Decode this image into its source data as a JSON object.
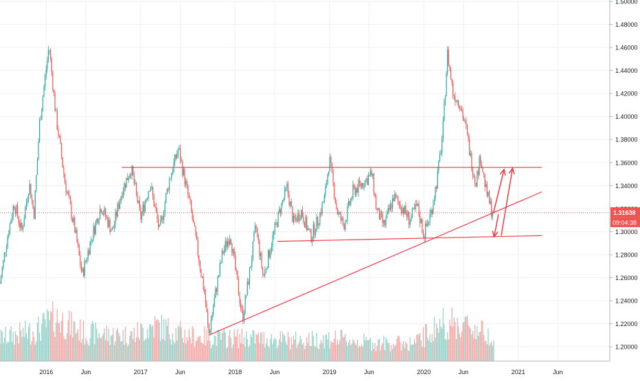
{
  "chart_data": {
    "type": "candlestick",
    "x_tick_labels": [
      "2016",
      "Jun",
      "2017",
      "Jun",
      "2018",
      "Jun",
      "2019",
      "Jun",
      "2020",
      "Jun",
      "2021",
      "Jun"
    ],
    "x_ticks": [
      {
        "label": "2016",
        "date": 2016.0
      },
      {
        "label": "Jun",
        "date": 2016.42
      },
      {
        "label": "2017",
        "date": 2017.0
      },
      {
        "label": "Jun",
        "date": 2017.42
      },
      {
        "label": "2018",
        "date": 2018.0
      },
      {
        "label": "Jun",
        "date": 2018.42
      },
      {
        "label": "2019",
        "date": 2019.0
      },
      {
        "label": "Jun",
        "date": 2019.42
      },
      {
        "label": "2020",
        "date": 2020.0
      },
      {
        "label": "Jun",
        "date": 2020.42
      },
      {
        "label": "2021",
        "date": 2021.0
      },
      {
        "label": "Jun",
        "date": 2021.42
      }
    ],
    "y_tick_labels": [
      "1.50000",
      "1.48000",
      "1.46000",
      "1.44000",
      "1.42000",
      "1.40000",
      "1.38000",
      "1.36000",
      "1.34000",
      "1.32000",
      "1.30000",
      "1.28000",
      "1.26000",
      "1.24000",
      "1.22000",
      "1.20000"
    ],
    "ylim": [
      1.1875,
      1.5
    ],
    "xlim": [
      2015.51,
      2021.97
    ],
    "current_price": {
      "label": "1.31638",
      "value": 1.31638,
      "color": "#ef5350"
    },
    "countdown": {
      "label": "09:04:38"
    },
    "colors": {
      "up": "#26a69a",
      "down": "#ef5350",
      "drawing": "#f23645",
      "volume_up": "#8fcfc5",
      "volume_down": "#f5a3a1"
    },
    "price_path": [
      [
        2015.51,
        1.255
      ],
      [
        2015.58,
        1.292
      ],
      [
        2015.66,
        1.325
      ],
      [
        2015.74,
        1.3
      ],
      [
        2015.82,
        1.342
      ],
      [
        2015.87,
        1.315
      ],
      [
        2015.93,
        1.395
      ],
      [
        2016.03,
        1.462
      ],
      [
        2016.1,
        1.402
      ],
      [
        2016.2,
        1.342
      ],
      [
        2016.3,
        1.303
      ],
      [
        2016.38,
        1.262
      ],
      [
        2016.48,
        1.295
      ],
      [
        2016.58,
        1.322
      ],
      [
        2016.7,
        1.3
      ],
      [
        2016.8,
        1.335
      ],
      [
        2016.9,
        1.355
      ],
      [
        2017.0,
        1.312
      ],
      [
        2017.1,
        1.342
      ],
      [
        2017.2,
        1.3
      ],
      [
        2017.3,
        1.344
      ],
      [
        2017.4,
        1.372
      ],
      [
        2017.48,
        1.34
      ],
      [
        2017.53,
        1.32
      ],
      [
        2017.6,
        1.285
      ],
      [
        2017.68,
        1.245
      ],
      [
        2017.72,
        1.21
      ],
      [
        2017.8,
        1.25
      ],
      [
        2017.87,
        1.282
      ],
      [
        2017.95,
        1.298
      ],
      [
        2018.0,
        1.268
      ],
      [
        2018.08,
        1.225
      ],
      [
        2018.15,
        1.262
      ],
      [
        2018.22,
        1.305
      ],
      [
        2018.3,
        1.26
      ],
      [
        2018.4,
        1.295
      ],
      [
        2018.48,
        1.32
      ],
      [
        2018.55,
        1.338
      ],
      [
        2018.62,
        1.308
      ],
      [
        2018.7,
        1.318
      ],
      [
        2018.8,
        1.295
      ],
      [
        2018.88,
        1.31
      ],
      [
        2018.95,
        1.33
      ],
      [
        2019.0,
        1.363
      ],
      [
        2019.08,
        1.318
      ],
      [
        2019.15,
        1.305
      ],
      [
        2019.25,
        1.335
      ],
      [
        2019.35,
        1.342
      ],
      [
        2019.45,
        1.35
      ],
      [
        2019.5,
        1.318
      ],
      [
        2019.58,
        1.305
      ],
      [
        2019.68,
        1.33
      ],
      [
        2019.78,
        1.32
      ],
      [
        2019.85,
        1.31
      ],
      [
        2019.93,
        1.322
      ],
      [
        2020.0,
        1.297
      ],
      [
        2020.08,
        1.318
      ],
      [
        2020.14,
        1.345
      ],
      [
        2020.2,
        1.385
      ],
      [
        2020.25,
        1.455
      ],
      [
        2020.31,
        1.42
      ],
      [
        2020.38,
        1.412
      ],
      [
        2020.45,
        1.388
      ],
      [
        2020.5,
        1.362
      ],
      [
        2020.55,
        1.343
      ],
      [
        2020.6,
        1.365
      ],
      [
        2020.66,
        1.335
      ],
      [
        2020.72,
        1.318
      ],
      [
        2020.74,
        1.3164
      ]
    ],
    "volume_profile": [
      [
        2015.51,
        0.45
      ],
      [
        2015.9,
        0.6
      ],
      [
        2016.1,
        0.85
      ],
      [
        2016.4,
        0.55
      ],
      [
        2016.9,
        0.5
      ],
      [
        2017.15,
        0.7
      ],
      [
        2017.5,
        0.5
      ],
      [
        2017.8,
        0.45
      ],
      [
        2018.2,
        0.45
      ],
      [
        2018.7,
        0.4
      ],
      [
        2019.0,
        0.45
      ],
      [
        2019.5,
        0.35
      ],
      [
        2019.9,
        0.35
      ],
      [
        2020.2,
        0.75
      ],
      [
        2020.45,
        0.7
      ],
      [
        2020.74,
        0.5
      ]
    ],
    "annotations": {
      "horizontal_resistance": {
        "y": 1.3558,
        "x_start": 2016.8,
        "x_end": 2021.25
      },
      "lower_support": {
        "x_start": 2018.45,
        "y_start": 1.2915,
        "x_end": 2021.25,
        "y_end": 1.2965
      },
      "rising_trendline": {
        "x_start": 2017.72,
        "y_start": 1.21,
        "x_end": 2021.25,
        "y_end": 1.3345
      },
      "arrows": [
        {
          "from": [
            2020.74,
            1.317
          ],
          "to": [
            2020.85,
            1.354
          ]
        },
        {
          "from": [
            2020.79,
            1.315
          ],
          "to": [
            2020.745,
            1.2955
          ]
        },
        {
          "from": [
            2020.82,
            1.2965
          ],
          "to": [
            2020.94,
            1.355
          ]
        }
      ]
    }
  }
}
